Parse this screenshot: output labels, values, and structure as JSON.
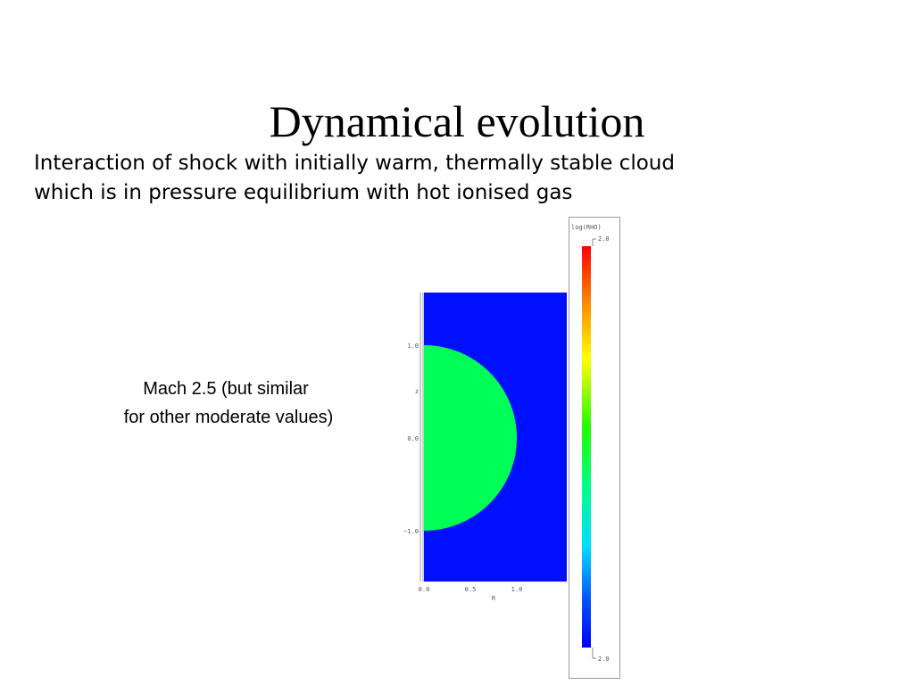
{
  "slide": {
    "title": "Dynamical evolution",
    "body": [
      "Interaction of shock with initially warm, thermally stable cloud",
      "which is in pressure equilibrium with hot ionised gas"
    ],
    "caption": [
      "Mach 2.5 (but similar",
      "for other moderate values)"
    ]
  },
  "figure": {
    "y_label": "z",
    "y_ticks": [
      "1.0",
      "0.0",
      "−1.0"
    ],
    "x_label": "R",
    "x_ticks": [
      "0.0",
      "0.5",
      "1.0"
    ],
    "colorbar_label": "log(RHO)",
    "colorbar_top": "2.0",
    "colorbar_bottom": "2.0"
  }
}
